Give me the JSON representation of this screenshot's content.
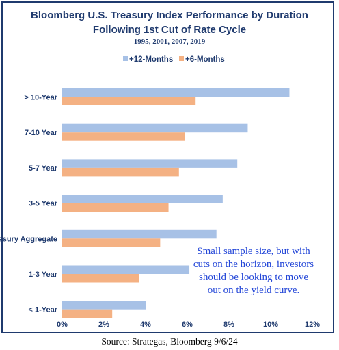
{
  "chart_data": {
    "type": "bar",
    "orientation": "horizontal",
    "title": "Bloomberg U.S. Treasury Index Performance by Duration",
    "title_line2": "Following 1st Cut of Rate Cycle",
    "subtitle": "1995, 2001, 2007, 2019",
    "categories": [
      "> 10-Year",
      "7-10 Year",
      "5-7 Year",
      "3-5 Year",
      "Treasury Aggregate",
      "1-3 Year",
      "< 1-Year"
    ],
    "series": [
      {
        "name": "+12-Months",
        "color": "#a7c1e6",
        "values": [
          10.9,
          8.9,
          8.4,
          7.7,
          7.4,
          6.1,
          4.0
        ]
      },
      {
        "name": "+6-Months",
        "color": "#f4b183",
        "values": [
          6.4,
          5.9,
          5.6,
          5.1,
          4.7,
          3.7,
          2.4
        ]
      }
    ],
    "xlim": [
      0,
      12
    ],
    "x_ticks": [
      "0%",
      "2%",
      "4%",
      "6%",
      "8%",
      "10%",
      "12%"
    ],
    "x_tick_values": [
      0,
      2,
      4,
      6,
      8,
      10,
      12
    ],
    "legend_position": "top-center",
    "grid": false,
    "annotation": [
      "Small sample size, but with",
      "cuts on the horizon, investors",
      "should be looking to move",
      "out on the yield curve."
    ]
  },
  "source": "Source: Strategas, Bloomberg 9/6/24"
}
